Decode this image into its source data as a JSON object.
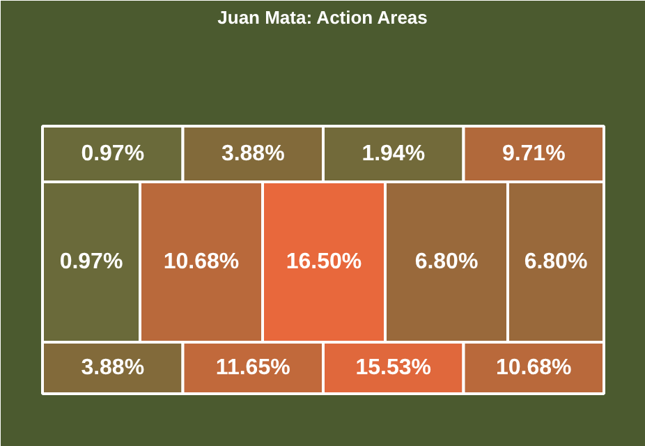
{
  "chart_data": {
    "type": "other",
    "title": "Juan Mata: Action Areas",
    "values": [
      0.97,
      3.88,
      1.94,
      9.71,
      0.97,
      10.68,
      16.5,
      6.8,
      6.8,
      3.88,
      11.65,
      15.53,
      10.68
    ],
    "value_labels": [
      "0.97%",
      "3.88%",
      "1.94%",
      "9.71%",
      "0.97%",
      "10.68%",
      "16.50%",
      "6.80%",
      "6.80%",
      "3.88%",
      "11.65%",
      "15.53%",
      "10.68%"
    ]
  }
}
